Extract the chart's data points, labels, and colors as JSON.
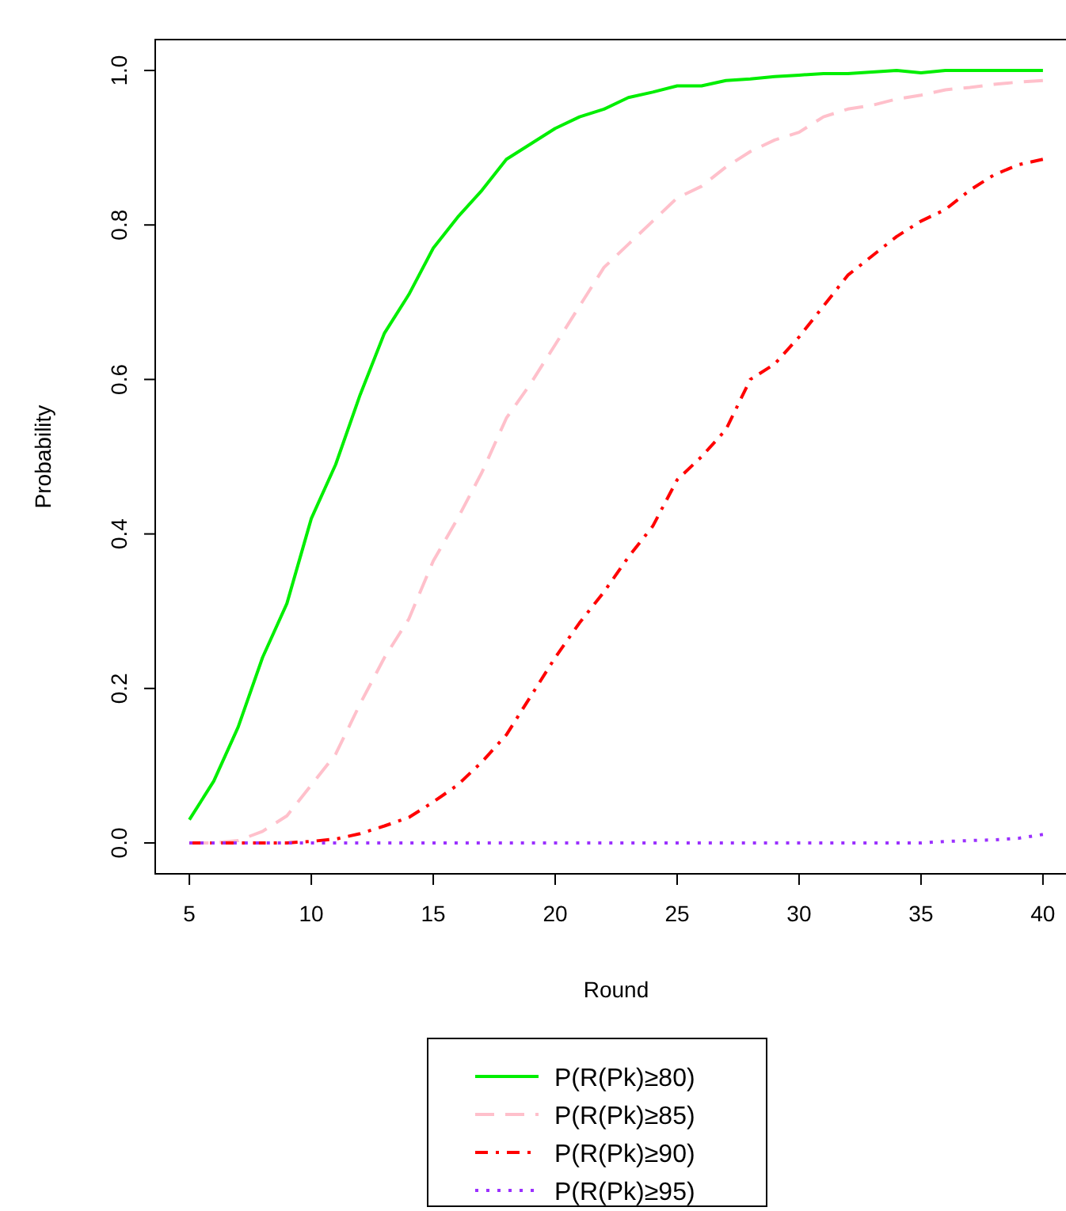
{
  "chart_data": {
    "type": "line",
    "xlabel": "Round",
    "ylabel": "Probability",
    "x": [
      5,
      6,
      7,
      8,
      9,
      10,
      11,
      12,
      13,
      14,
      15,
      16,
      17,
      18,
      19,
      20,
      21,
      22,
      23,
      24,
      25,
      26,
      27,
      28,
      29,
      30,
      31,
      32,
      33,
      34,
      35,
      36,
      37,
      38,
      39,
      40
    ],
    "xlim": [
      3.6,
      41.4
    ],
    "xticks": [
      5,
      10,
      15,
      20,
      25,
      30,
      35,
      40
    ],
    "ylim": [
      -0.04,
      1.04
    ],
    "yticks": [
      {
        "value": 0,
        "label": "0.0"
      },
      {
        "value": 0.2,
        "label": "0.2"
      },
      {
        "value": 0.4,
        "label": "0.4"
      },
      {
        "value": 0.6,
        "label": "0.6"
      },
      {
        "value": 0.8,
        "label": "0.8"
      },
      {
        "value": 1,
        "label": "1.0"
      }
    ],
    "grid": false,
    "legend": "bottom",
    "marker": "none",
    "series": [
      {
        "name": "P(R(Pk)≥80)",
        "color": "#00ee00",
        "line_style": "solid",
        "values": [
          0.03,
          0.08,
          0.15,
          0.24,
          0.31,
          0.42,
          0.49,
          0.58,
          0.66,
          0.71,
          0.77,
          0.81,
          0.845,
          0.885,
          0.905,
          0.925,
          0.94,
          0.95,
          0.965,
          0.972,
          0.98,
          0.98,
          0.987,
          0.989,
          0.992,
          0.994,
          0.996,
          0.996,
          0.998,
          1.0,
          0.997,
          1.0,
          1.0,
          1.0,
          1.0,
          1.0
        ]
      },
      {
        "name": "P(R(Pk)≥85)",
        "color": "#ffc0cb",
        "line_style": "dashed",
        "values": [
          0,
          0,
          0.003,
          0.015,
          0.035,
          0.075,
          0.115,
          0.18,
          0.24,
          0.29,
          0.365,
          0.42,
          0.48,
          0.55,
          0.595,
          0.645,
          0.695,
          0.745,
          0.775,
          0.805,
          0.835,
          0.85,
          0.875,
          0.895,
          0.91,
          0.92,
          0.94,
          0.95,
          0.955,
          0.963,
          0.968,
          0.975,
          0.978,
          0.982,
          0.985,
          0.987
        ]
      },
      {
        "name": "P(R(Pk)≥90)",
        "color": "#ff0000",
        "line_style": "dashdot",
        "values": [
          0,
          0,
          0,
          0,
          0,
          0.002,
          0.005,
          0.012,
          0.022,
          0.033,
          0.053,
          0.075,
          0.105,
          0.14,
          0.19,
          0.24,
          0.285,
          0.325,
          0.37,
          0.41,
          0.47,
          0.5,
          0.535,
          0.6,
          0.62,
          0.655,
          0.695,
          0.735,
          0.76,
          0.785,
          0.805,
          0.82,
          0.845,
          0.865,
          0.878,
          0.885
        ]
      },
      {
        "name": "P(R(Pk)≥95)",
        "color": "#9b30ff",
        "line_style": "dotted",
        "values": [
          0,
          0,
          0,
          0,
          0,
          0,
          0,
          0,
          0,
          0,
          0,
          0,
          0,
          0,
          0,
          0,
          0,
          0,
          0,
          0,
          0,
          0,
          0,
          0,
          0,
          0,
          0,
          0,
          0,
          0,
          0,
          0.002,
          0.003,
          0.004,
          0.006,
          0.011
        ]
      }
    ]
  }
}
